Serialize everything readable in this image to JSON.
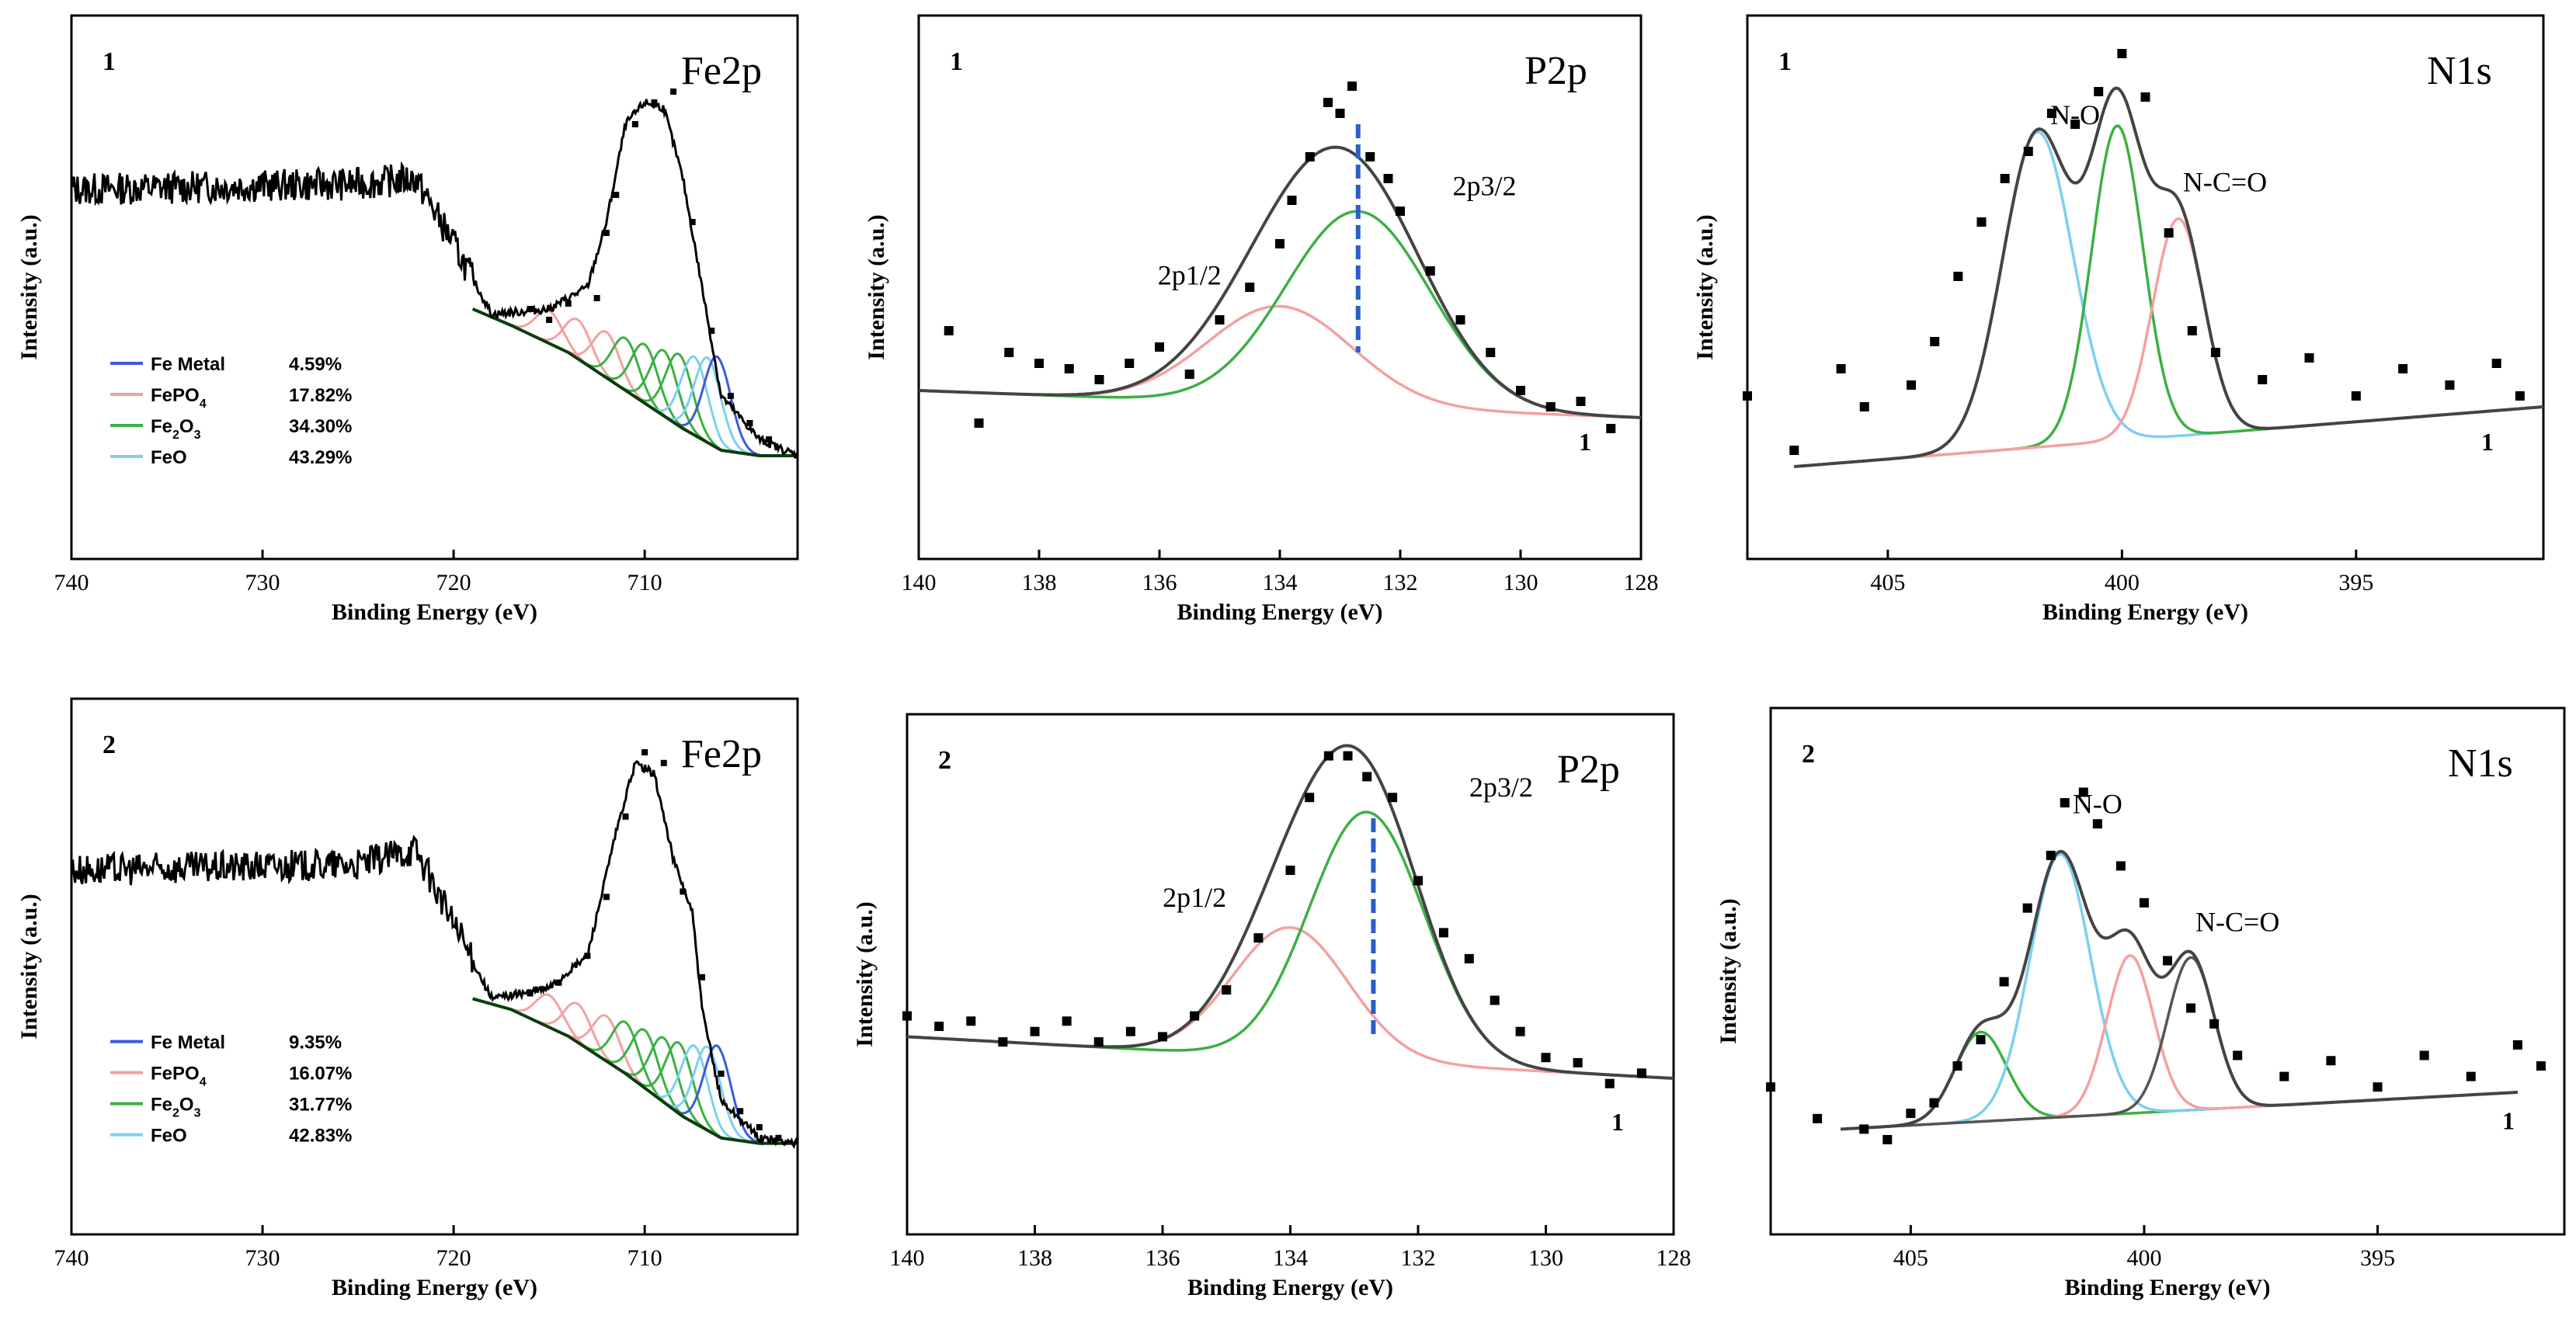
{
  "figure": {
    "ylabel": "Intensity (a.u.)",
    "xlabel": "Binding Energy (eV)"
  },
  "chart_data": [
    {
      "id": "fe2p-1",
      "type": "line",
      "sample": "1",
      "title": "Fe2p",
      "xlabel": "Binding Energy (eV)",
      "ylabel": "Intensity (a.u.)",
      "xlim": [
        740,
        702
      ],
      "xticks": [
        740,
        730,
        720,
        710
      ],
      "ylim": [
        0,
        1
      ],
      "fit_components": [
        {
          "name": "Fe Metal",
          "value": "4.59%",
          "color": "#3b5bdb"
        },
        {
          "name": "FePO",
          "sub": "4",
          "value": "17.82%",
          "color": "#f4a0a0"
        },
        {
          "name": "Fe",
          "sub": "2",
          "after": "O",
          "sub2": "3",
          "value": "34.30%",
          "color": "#3cb043"
        },
        {
          "name": "FeO",
          "value": "43.29%",
          "color": "#7cd0f0"
        }
      ],
      "envelope": [
        [
          740,
          0.68
        ],
        [
          725,
          0.69
        ],
        [
          722,
          0.7
        ],
        [
          720,
          0.58
        ],
        [
          718,
          0.45
        ],
        [
          715,
          0.46
        ],
        [
          713,
          0.5
        ],
        [
          712,
          0.62
        ],
        [
          711,
          0.8
        ],
        [
          710,
          0.84
        ],
        [
          709,
          0.83
        ],
        [
          708,
          0.7
        ],
        [
          707,
          0.5
        ],
        [
          706,
          0.3
        ],
        [
          704,
          0.22
        ],
        [
          702,
          0.19
        ]
      ],
      "background": [
        [
          719,
          0.46
        ],
        [
          717,
          0.43
        ],
        [
          714,
          0.38
        ],
        [
          711,
          0.31
        ],
        [
          708,
          0.24
        ],
        [
          706,
          0.2
        ],
        [
          704,
          0.19
        ],
        [
          702,
          0.19
        ]
      ],
      "data_points": [
        [
          712.5,
          0.48
        ],
        [
          712,
          0.6
        ],
        [
          711.5,
          0.67
        ],
        [
          710.5,
          0.8
        ],
        [
          709.5,
          0.84
        ],
        [
          708.5,
          0.86
        ],
        [
          707.5,
          0.62
        ],
        [
          706.5,
          0.42
        ],
        [
          705.5,
          0.3
        ],
        [
          704.5,
          0.25
        ],
        [
          703.5,
          0.22
        ],
        [
          716,
          0.46
        ],
        [
          714,
          0.47
        ],
        [
          715,
          0.44
        ]
      ]
    },
    {
      "id": "p2p-1",
      "type": "line",
      "sample": "1",
      "title": "P2p",
      "xlabel": "Binding Energy (eV)",
      "ylabel": "Intensity (a.u.)",
      "xlim": [
        140,
        128
      ],
      "xticks": [
        140,
        138,
        136,
        134,
        132,
        130,
        128
      ],
      "ylim": [
        0,
        1
      ],
      "peaks": [
        {
          "label": "2p1/2",
          "center": 134.0,
          "height": 0.18,
          "width": 1.2,
          "color": "#f4a0a0"
        },
        {
          "label": "2p3/2",
          "center": 132.7,
          "height": 0.36,
          "width": 1.2,
          "color": "#3cb043"
        }
      ],
      "baseline": [
        [
          140,
          0.31
        ],
        [
          128,
          0.26
        ]
      ],
      "dashed_line_x": 132.7,
      "extra_label": "1",
      "data_points": [
        [
          139.5,
          0.42
        ],
        [
          139,
          0.25
        ],
        [
          138.5,
          0.38
        ],
        [
          138,
          0.36
        ],
        [
          137.5,
          0.35
        ],
        [
          137,
          0.33
        ],
        [
          136.5,
          0.36
        ],
        [
          136,
          0.39
        ],
        [
          135.5,
          0.34
        ],
        [
          135,
          0.44
        ],
        [
          134.5,
          0.5
        ],
        [
          134,
          0.58
        ],
        [
          133.8,
          0.66
        ],
        [
          133.5,
          0.74
        ],
        [
          133.2,
          0.84
        ],
        [
          133,
          0.82
        ],
        [
          132.8,
          0.87
        ],
        [
          132.5,
          0.74
        ],
        [
          132.2,
          0.7
        ],
        [
          132,
          0.64
        ],
        [
          131.5,
          0.53
        ],
        [
          131,
          0.44
        ],
        [
          130.5,
          0.38
        ],
        [
          130,
          0.31
        ],
        [
          129.5,
          0.28
        ],
        [
          129,
          0.29
        ],
        [
          128.5,
          0.24
        ]
      ]
    },
    {
      "id": "n1s-1",
      "type": "line",
      "sample": "1",
      "title": "N1s",
      "xlabel": "Binding Energy (eV)",
      "ylabel": "Intensity (a.u.)",
      "xlim": [
        408,
        391
      ],
      "xticks": [
        405,
        400,
        395
      ],
      "ylim": [
        0,
        1
      ],
      "peaks": [
        {
          "label": "N-O",
          "center": 401.8,
          "height": 0.58,
          "width": 0.75,
          "color": "#7cd0f0"
        },
        {
          "label": "",
          "center": 400.1,
          "height": 0.58,
          "width": 0.55,
          "color": "#3cb043"
        },
        {
          "label": "N-C=O",
          "center": 398.8,
          "height": 0.4,
          "width": 0.55,
          "color": "#f4a0a0"
        }
      ],
      "baseline": [
        [
          407,
          0.17
        ],
        [
          391,
          0.28
        ]
      ],
      "extra_label": "1",
      "data_points": [
        [
          408,
          0.3
        ],
        [
          407,
          0.2
        ],
        [
          406,
          0.35
        ],
        [
          405.5,
          0.28
        ],
        [
          404.5,
          0.32
        ],
        [
          404,
          0.4
        ],
        [
          403.5,
          0.52
        ],
        [
          403,
          0.62
        ],
        [
          402.5,
          0.7
        ],
        [
          402,
          0.75
        ],
        [
          401.5,
          0.82
        ],
        [
          401,
          0.8
        ],
        [
          400.5,
          0.86
        ],
        [
          400,
          0.93
        ],
        [
          399.5,
          0.85
        ],
        [
          399,
          0.6
        ],
        [
          398.5,
          0.42
        ],
        [
          398,
          0.38
        ],
        [
          397,
          0.33
        ],
        [
          396,
          0.37
        ],
        [
          395,
          0.3
        ],
        [
          394,
          0.35
        ],
        [
          393,
          0.32
        ],
        [
          392,
          0.36
        ],
        [
          391.5,
          0.3
        ]
      ]
    },
    {
      "id": "fe2p-2",
      "type": "line",
      "sample": "2",
      "title": "Fe2p",
      "xlabel": "Binding Energy (eV)",
      "ylabel": "Intensity (a.u.)",
      "xlim": [
        740,
        702
      ],
      "xticks": [
        740,
        730,
        720,
        710
      ],
      "ylim": [
        0,
        1
      ],
      "fit_components": [
        {
          "name": "Fe Metal",
          "value": "9.35%",
          "color": "#3b5bdb"
        },
        {
          "name": "FePO",
          "sub": "4",
          "value": "16.07%",
          "color": "#f4a0a0"
        },
        {
          "name": "Fe",
          "sub": "2",
          "after": "O",
          "sub2": "3",
          "value": "31.77%",
          "color": "#3cb043"
        },
        {
          "name": "FeO",
          "value": "42.83%",
          "color": "#7cd0f0"
        }
      ],
      "envelope": [
        [
          740,
          0.68
        ],
        [
          725,
          0.69
        ],
        [
          722,
          0.72
        ],
        [
          720,
          0.58
        ],
        [
          718,
          0.44
        ],
        [
          715,
          0.46
        ],
        [
          713,
          0.52
        ],
        [
          711.5,
          0.75
        ],
        [
          710.5,
          0.88
        ],
        [
          709.5,
          0.86
        ],
        [
          708.5,
          0.7
        ],
        [
          707.5,
          0.6
        ],
        [
          707,
          0.42
        ],
        [
          706,
          0.25
        ],
        [
          704,
          0.18
        ],
        [
          702,
          0.17
        ]
      ],
      "background": [
        [
          719,
          0.44
        ],
        [
          717,
          0.42
        ],
        [
          714,
          0.37
        ],
        [
          711,
          0.3
        ],
        [
          708,
          0.22
        ],
        [
          706,
          0.18
        ],
        [
          704,
          0.17
        ],
        [
          702,
          0.17
        ]
      ],
      "data_points": [
        [
          713,
          0.52
        ],
        [
          712,
          0.63
        ],
        [
          711,
          0.78
        ],
        [
          710,
          0.9
        ],
        [
          709,
          0.88
        ],
        [
          708,
          0.64
        ],
        [
          707,
          0.48
        ],
        [
          706,
          0.3
        ],
        [
          705,
          0.23
        ],
        [
          704,
          0.2
        ],
        [
          703,
          0.18
        ],
        [
          716,
          0.45
        ],
        [
          714.5,
          0.47
        ]
      ]
    },
    {
      "id": "p2p-2",
      "type": "line",
      "sample": "2",
      "title": "P2p",
      "xlabel": "Binding Energy (eV)",
      "ylabel": "Intensity (a.u.)",
      "xlim": [
        140,
        128
      ],
      "xticks": [
        140,
        138,
        136,
        134,
        132,
        130,
        128
      ],
      "ylim": [
        0,
        1
      ],
      "peaks": [
        {
          "label": "2p1/2",
          "center": 134.0,
          "height": 0.25,
          "width": 0.9,
          "color": "#f4a0a0"
        },
        {
          "label": "2p3/2",
          "center": 132.8,
          "height": 0.48,
          "width": 0.9,
          "color": "#3cb043"
        }
      ],
      "baseline": [
        [
          140,
          0.38
        ],
        [
          128,
          0.3
        ]
      ],
      "dashed_line_x": 132.7,
      "extra_label": "1",
      "data_points": [
        [
          140,
          0.42
        ],
        [
          139.5,
          0.4
        ],
        [
          139,
          0.41
        ],
        [
          138.5,
          0.37
        ],
        [
          138,
          0.39
        ],
        [
          137.5,
          0.41
        ],
        [
          137,
          0.37
        ],
        [
          136.5,
          0.39
        ],
        [
          136,
          0.38
        ],
        [
          135.5,
          0.42
        ],
        [
          135,
          0.47
        ],
        [
          134.5,
          0.57
        ],
        [
          134,
          0.7
        ],
        [
          133.7,
          0.84
        ],
        [
          133.4,
          0.92
        ],
        [
          133.1,
          0.92
        ],
        [
          132.8,
          0.88
        ],
        [
          132.4,
          0.84
        ],
        [
          132,
          0.68
        ],
        [
          131.6,
          0.58
        ],
        [
          131.2,
          0.53
        ],
        [
          130.8,
          0.45
        ],
        [
          130.4,
          0.39
        ],
        [
          130,
          0.34
        ],
        [
          129.5,
          0.33
        ],
        [
          129,
          0.29
        ],
        [
          128.5,
          0.31
        ]
      ]
    },
    {
      "id": "n1s-2",
      "type": "line",
      "sample": "2",
      "title": "N1s",
      "xlabel": "Binding Energy (eV)",
      "ylabel": "Intensity (a.u.)",
      "xlim": [
        408,
        391
      ],
      "xticks": [
        405,
        400,
        395
      ],
      "ylim": [
        0,
        1
      ],
      "peaks": [
        {
          "label": "",
          "center": 403.5,
          "height": 0.17,
          "width": 0.55,
          "color": "#3cb043"
        },
        {
          "label": "N-O",
          "center": 401.8,
          "height": 0.5,
          "width": 0.65,
          "color": "#7cd0f0"
        },
        {
          "label": "",
          "center": 400.3,
          "height": 0.3,
          "width": 0.5,
          "color": "#f4a0a0"
        },
        {
          "label": "N-C=O",
          "center": 399.0,
          "height": 0.29,
          "width": 0.5,
          "color": "#555555"
        }
      ],
      "baseline": [
        [
          406.5,
          0.2
        ],
        [
          392,
          0.27
        ]
      ],
      "extra_label": "1",
      "data_points": [
        [
          408,
          0.28
        ],
        [
          407,
          0.22
        ],
        [
          406,
          0.2
        ],
        [
          405.5,
          0.18
        ],
        [
          405,
          0.23
        ],
        [
          404.5,
          0.25
        ],
        [
          404,
          0.32
        ],
        [
          403.5,
          0.37
        ],
        [
          403,
          0.48
        ],
        [
          402.5,
          0.62
        ],
        [
          402,
          0.72
        ],
        [
          401.7,
          0.82
        ],
        [
          401.3,
          0.84
        ],
        [
          401,
          0.78
        ],
        [
          400.5,
          0.7
        ],
        [
          400,
          0.63
        ],
        [
          399.5,
          0.52
        ],
        [
          399,
          0.43
        ],
        [
          398.5,
          0.4
        ],
        [
          398,
          0.34
        ],
        [
          397,
          0.3
        ],
        [
          396,
          0.33
        ],
        [
          395,
          0.28
        ],
        [
          394,
          0.34
        ],
        [
          393,
          0.3
        ],
        [
          392,
          0.36
        ],
        [
          391.5,
          0.32
        ]
      ]
    }
  ]
}
